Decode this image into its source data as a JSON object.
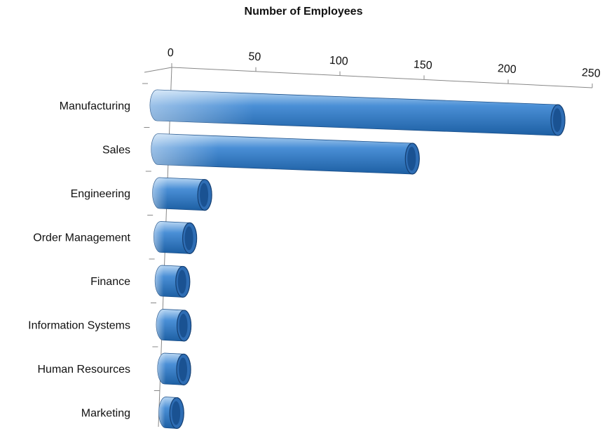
{
  "chart_data": {
    "type": "bar",
    "orientation": "horizontal",
    "style": "3d-cylinder",
    "title": "Number of Employees",
    "xlabel": "",
    "ylabel": "",
    "xlim": [
      0,
      250
    ],
    "ticks": [
      "0",
      "50",
      "100",
      "150",
      "200",
      "250"
    ],
    "tick_values": [
      0,
      50,
      100,
      150,
      200,
      250
    ],
    "axis_position": "top",
    "grid": false,
    "legend": "none",
    "categories": [
      "Manufacturing",
      "Sales",
      "Engineering",
      "Order Management",
      "Finance",
      "Information Systems",
      "Human Resources",
      "Marketing"
    ],
    "values": [
      250,
      160,
      32,
      22,
      17,
      17,
      16,
      11
    ],
    "colors": {
      "bar_dark": "#1d5fa3",
      "bar_mid": "#4a8fd6",
      "bar_light": "#b9d7f3",
      "cap": "#2e6db4",
      "axis": "#888888"
    }
  }
}
